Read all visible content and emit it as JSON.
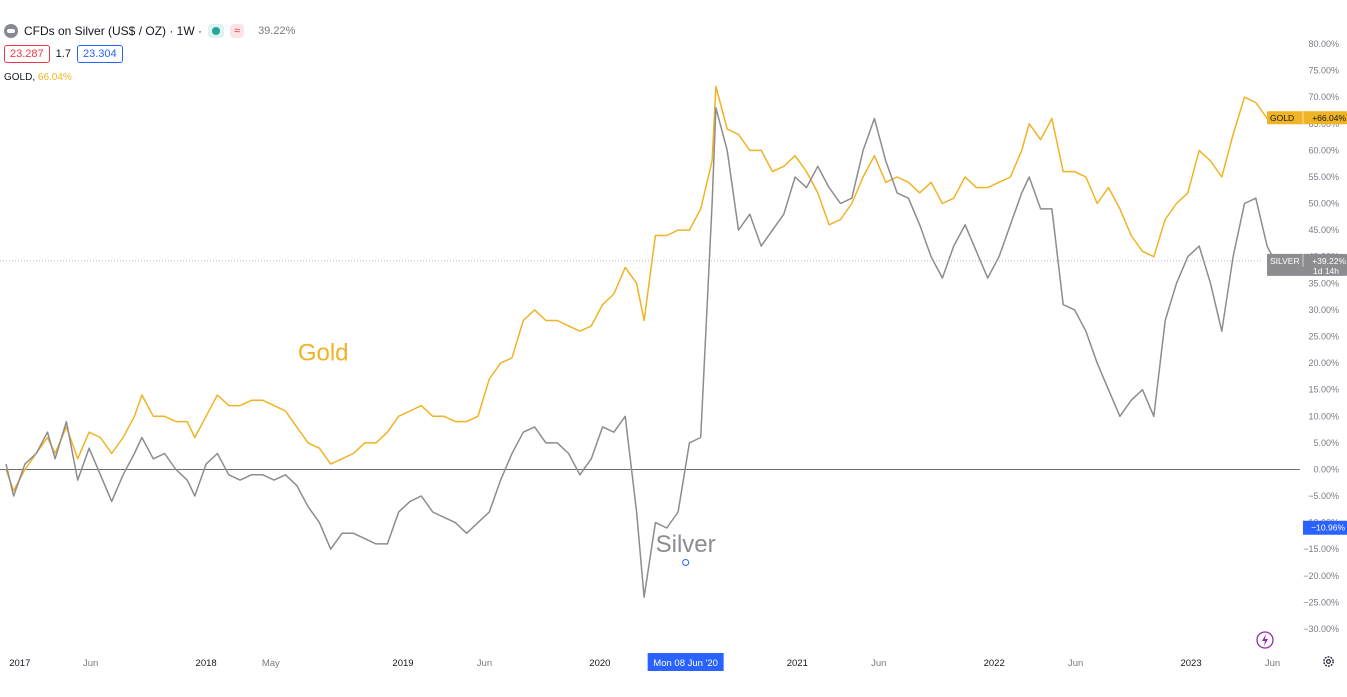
{
  "legend": {
    "title": "CFDs on Silver (US$ / OZ) · 1W ·",
    "status_icon": "green-dot-icon",
    "alert_icon": "red-approx-icon",
    "alert_glyph": "≈",
    "change": "39.22%"
  },
  "quote": {
    "bid": "23.287",
    "spread": "1.7",
    "ask": "23.304"
  },
  "compare": {
    "label": "GOLD,",
    "value": "66.04%"
  },
  "colors": {
    "gold": "#f0b323",
    "silver": "#8c8c91",
    "accent": "#2962ff",
    "axis_text": "#787b86",
    "zero_line": "#6b6e78"
  },
  "chart_data": {
    "type": "line",
    "annotations": [
      {
        "text": "Gold",
        "date": "2018-08-06",
        "y": 22,
        "color": "#f0b323"
      },
      {
        "text": "Silver",
        "date": "2020-06-08",
        "y": -14,
        "color": "#8c8c91"
      }
    ],
    "ylim": [
      -31,
      82
    ],
    "y_ticks": [
      "80.00%",
      "75.00%",
      "70.00%",
      "65.00%",
      "60.00%",
      "55.00%",
      "50.00%",
      "45.00%",
      "40.00%",
      "35.00%",
      "30.00%",
      "25.00%",
      "20.00%",
      "15.00%",
      "10.00%",
      "5.00%",
      "0.00%",
      "−5.00%",
      "−10.00%",
      "−15.00%",
      "−20.00%",
      "−25.00%",
      "−30.00%"
    ],
    "x_ticks": [
      {
        "label": "2017",
        "date": "2017-01-01",
        "bold": true
      },
      {
        "label": "Jun",
        "date": "2017-06-01",
        "bold": false
      },
      {
        "label": "2018",
        "date": "2018-01-01",
        "bold": true
      },
      {
        "label": "May",
        "date": "2018-05-01",
        "bold": false
      },
      {
        "label": "2019",
        "date": "2019-01-01",
        "bold": true
      },
      {
        "label": "Jun",
        "date": "2019-06-01",
        "bold": false
      },
      {
        "label": "2020",
        "date": "2020-01-01",
        "bold": true
      },
      {
        "label": "2021",
        "date": "2021-01-01",
        "bold": true
      },
      {
        "label": "Jun",
        "date": "2021-06-01",
        "bold": false
      },
      {
        "label": "2022",
        "date": "2022-01-01",
        "bold": true
      },
      {
        "label": "Jun",
        "date": "2022-06-01",
        "bold": false
      },
      {
        "label": "2023",
        "date": "2023-01-01",
        "bold": true
      },
      {
        "label": "Jun",
        "date": "2023-06-01",
        "bold": false
      }
    ],
    "crosshair": {
      "x_label": "Mon 08 Jun '20",
      "date": "2020-06-08",
      "y_label": "−10.96%",
      "y": -10.96
    },
    "price_labels": [
      {
        "name": "GOLD",
        "value": "+66.04%",
        "y": 66.04,
        "color": "#f0b323"
      },
      {
        "name": "SILVER",
        "value": "+39.22%",
        "extra": "1d 14h",
        "y": 39.22,
        "color": "#8c8c91"
      }
    ],
    "series": [
      {
        "color": "#f0b323",
        "points": [
          [
            "2016-12-26",
            0
          ],
          [
            "2017-01-09",
            -4
          ],
          [
            "2017-01-30",
            0
          ],
          [
            "2017-02-20",
            3
          ],
          [
            "2017-03-13",
            6
          ],
          [
            "2017-03-27",
            3
          ],
          [
            "2017-04-17",
            8
          ],
          [
            "2017-05-08",
            2
          ],
          [
            "2017-05-29",
            7
          ],
          [
            "2017-06-19",
            6
          ],
          [
            "2017-07-10",
            3
          ],
          [
            "2017-07-31",
            6
          ],
          [
            "2017-08-21",
            10
          ],
          [
            "2017-09-04",
            14
          ],
          [
            "2017-09-25",
            10
          ],
          [
            "2017-10-16",
            10
          ],
          [
            "2017-11-06",
            9
          ],
          [
            "2017-11-27",
            9
          ],
          [
            "2017-12-11",
            6
          ],
          [
            "2018-01-01",
            10
          ],
          [
            "2018-01-22",
            14
          ],
          [
            "2018-02-12",
            12
          ],
          [
            "2018-03-05",
            12
          ],
          [
            "2018-03-26",
            13
          ],
          [
            "2018-04-16",
            13
          ],
          [
            "2018-05-07",
            12
          ],
          [
            "2018-05-28",
            11
          ],
          [
            "2018-06-18",
            8
          ],
          [
            "2018-07-09",
            5
          ],
          [
            "2018-07-30",
            4
          ],
          [
            "2018-08-20",
            1
          ],
          [
            "2018-09-10",
            2
          ],
          [
            "2018-10-01",
            3
          ],
          [
            "2018-10-22",
            5
          ],
          [
            "2018-11-12",
            5
          ],
          [
            "2018-12-03",
            7
          ],
          [
            "2018-12-24",
            10
          ],
          [
            "2019-01-14",
            11
          ],
          [
            "2019-02-04",
            12
          ],
          [
            "2019-02-25",
            10
          ],
          [
            "2019-03-18",
            10
          ],
          [
            "2019-04-08",
            9
          ],
          [
            "2019-04-29",
            9
          ],
          [
            "2019-05-20",
            10
          ],
          [
            "2019-06-10",
            17
          ],
          [
            "2019-07-01",
            20
          ],
          [
            "2019-07-22",
            21
          ],
          [
            "2019-08-12",
            28
          ],
          [
            "2019-09-02",
            30
          ],
          [
            "2019-09-23",
            28
          ],
          [
            "2019-10-14",
            28
          ],
          [
            "2019-11-04",
            27
          ],
          [
            "2019-11-25",
            26
          ],
          [
            "2019-12-16",
            27
          ],
          [
            "2020-01-06",
            31
          ],
          [
            "2020-01-27",
            33
          ],
          [
            "2020-02-17",
            38
          ],
          [
            "2020-03-09",
            35
          ],
          [
            "2020-03-23",
            28
          ],
          [
            "2020-04-13",
            44
          ],
          [
            "2020-05-04",
            44
          ],
          [
            "2020-05-25",
            45
          ],
          [
            "2020-06-15",
            45
          ],
          [
            "2020-07-06",
            49
          ],
          [
            "2020-07-27",
            58
          ],
          [
            "2020-08-03",
            72
          ],
          [
            "2020-08-24",
            64
          ],
          [
            "2020-09-14",
            63
          ],
          [
            "2020-10-05",
            60
          ],
          [
            "2020-10-26",
            60
          ],
          [
            "2020-11-16",
            56
          ],
          [
            "2020-12-07",
            57
          ],
          [
            "2020-12-28",
            59
          ],
          [
            "2021-01-18",
            56
          ],
          [
            "2021-02-08",
            52
          ],
          [
            "2021-03-01",
            46
          ],
          [
            "2021-03-22",
            47
          ],
          [
            "2021-04-12",
            50
          ],
          [
            "2021-05-03",
            55
          ],
          [
            "2021-05-24",
            59
          ],
          [
            "2021-06-14",
            54
          ],
          [
            "2021-07-05",
            55
          ],
          [
            "2021-07-26",
            54
          ],
          [
            "2021-08-16",
            52
          ],
          [
            "2021-09-06",
            54
          ],
          [
            "2021-09-27",
            50
          ],
          [
            "2021-10-18",
            51
          ],
          [
            "2021-11-08",
            55
          ],
          [
            "2021-11-29",
            53
          ],
          [
            "2021-12-20",
            53
          ],
          [
            "2022-01-10",
            54
          ],
          [
            "2022-01-31",
            55
          ],
          [
            "2022-02-21",
            60
          ],
          [
            "2022-03-07",
            65
          ],
          [
            "2022-03-28",
            62
          ],
          [
            "2022-04-18",
            66
          ],
          [
            "2022-05-09",
            56
          ],
          [
            "2022-05-30",
            56
          ],
          [
            "2022-06-20",
            55
          ],
          [
            "2022-07-11",
            50
          ],
          [
            "2022-08-01",
            53
          ],
          [
            "2022-08-22",
            49
          ],
          [
            "2022-09-12",
            44
          ],
          [
            "2022-10-03",
            41
          ],
          [
            "2022-10-24",
            40
          ],
          [
            "2022-11-14",
            47
          ],
          [
            "2022-12-05",
            50
          ],
          [
            "2022-12-26",
            52
          ],
          [
            "2023-01-16",
            60
          ],
          [
            "2023-02-06",
            58
          ],
          [
            "2023-02-27",
            55
          ],
          [
            "2023-03-20",
            63
          ],
          [
            "2023-04-10",
            70
          ],
          [
            "2023-05-01",
            69
          ],
          [
            "2023-05-22",
            66
          ],
          [
            "2023-06-05",
            66
          ]
        ]
      },
      {
        "color": "#8c8c91",
        "points": [
          [
            "2016-12-26",
            1
          ],
          [
            "2017-01-09",
            -5
          ],
          [
            "2017-01-30",
            1
          ],
          [
            "2017-02-20",
            3
          ],
          [
            "2017-03-13",
            7
          ],
          [
            "2017-03-27",
            2
          ],
          [
            "2017-04-17",
            9
          ],
          [
            "2017-05-08",
            -2
          ],
          [
            "2017-05-29",
            4
          ],
          [
            "2017-06-19",
            -1
          ],
          [
            "2017-07-10",
            -6
          ],
          [
            "2017-07-31",
            -1
          ],
          [
            "2017-08-21",
            3
          ],
          [
            "2017-09-04",
            6
          ],
          [
            "2017-09-25",
            2
          ],
          [
            "2017-10-16",
            3
          ],
          [
            "2017-11-06",
            0
          ],
          [
            "2017-11-27",
            -2
          ],
          [
            "2017-12-11",
            -5
          ],
          [
            "2018-01-01",
            1
          ],
          [
            "2018-01-22",
            3
          ],
          [
            "2018-02-12",
            -1
          ],
          [
            "2018-03-05",
            -2
          ],
          [
            "2018-03-26",
            -1
          ],
          [
            "2018-04-16",
            -1
          ],
          [
            "2018-05-07",
            -2
          ],
          [
            "2018-05-28",
            -1
          ],
          [
            "2018-06-18",
            -3
          ],
          [
            "2018-07-09",
            -7
          ],
          [
            "2018-07-30",
            -10
          ],
          [
            "2018-08-20",
            -15
          ],
          [
            "2018-09-10",
            -12
          ],
          [
            "2018-10-01",
            -12
          ],
          [
            "2018-10-22",
            -13
          ],
          [
            "2018-11-12",
            -14
          ],
          [
            "2018-12-03",
            -14
          ],
          [
            "2018-12-24",
            -8
          ],
          [
            "2019-01-14",
            -6
          ],
          [
            "2019-02-04",
            -5
          ],
          [
            "2019-02-25",
            -8
          ],
          [
            "2019-03-18",
            -9
          ],
          [
            "2019-04-08",
            -10
          ],
          [
            "2019-04-29",
            -12
          ],
          [
            "2019-05-20",
            -10
          ],
          [
            "2019-06-10",
            -8
          ],
          [
            "2019-07-01",
            -2
          ],
          [
            "2019-07-22",
            3
          ],
          [
            "2019-08-12",
            7
          ],
          [
            "2019-09-02",
            8
          ],
          [
            "2019-09-23",
            5
          ],
          [
            "2019-10-14",
            5
          ],
          [
            "2019-11-04",
            3
          ],
          [
            "2019-11-25",
            -1
          ],
          [
            "2019-12-16",
            2
          ],
          [
            "2020-01-06",
            8
          ],
          [
            "2020-01-27",
            7
          ],
          [
            "2020-02-17",
            10
          ],
          [
            "2020-03-09",
            -8
          ],
          [
            "2020-03-23",
            -24
          ],
          [
            "2020-04-13",
            -10
          ],
          [
            "2020-05-04",
            -11
          ],
          [
            "2020-05-25",
            -8
          ],
          [
            "2020-06-15",
            5
          ],
          [
            "2020-07-06",
            6
          ],
          [
            "2020-07-27",
            50
          ],
          [
            "2020-08-03",
            68
          ],
          [
            "2020-08-24",
            60
          ],
          [
            "2020-09-14",
            45
          ],
          [
            "2020-10-05",
            48
          ],
          [
            "2020-10-26",
            42
          ],
          [
            "2020-11-16",
            45
          ],
          [
            "2020-12-07",
            48
          ],
          [
            "2020-12-28",
            55
          ],
          [
            "2021-01-18",
            53
          ],
          [
            "2021-02-08",
            57
          ],
          [
            "2021-03-01",
            53
          ],
          [
            "2021-03-22",
            50
          ],
          [
            "2021-04-12",
            51
          ],
          [
            "2021-05-03",
            60
          ],
          [
            "2021-05-24",
            66
          ],
          [
            "2021-06-14",
            58
          ],
          [
            "2021-07-05",
            52
          ],
          [
            "2021-07-26",
            51
          ],
          [
            "2021-08-16",
            46
          ],
          [
            "2021-09-06",
            40
          ],
          [
            "2021-09-27",
            36
          ],
          [
            "2021-10-18",
            42
          ],
          [
            "2021-11-08",
            46
          ],
          [
            "2021-11-29",
            41
          ],
          [
            "2021-12-20",
            36
          ],
          [
            "2022-01-10",
            40
          ],
          [
            "2022-01-31",
            46
          ],
          [
            "2022-02-21",
            52
          ],
          [
            "2022-03-07",
            55
          ],
          [
            "2022-03-28",
            49
          ],
          [
            "2022-04-18",
            49
          ],
          [
            "2022-05-09",
            31
          ],
          [
            "2022-05-30",
            30
          ],
          [
            "2022-06-20",
            26
          ],
          [
            "2022-07-11",
            20
          ],
          [
            "2022-08-01",
            15
          ],
          [
            "2022-08-22",
            10
          ],
          [
            "2022-09-12",
            13
          ],
          [
            "2022-10-03",
            15
          ],
          [
            "2022-10-24",
            10
          ],
          [
            "2022-11-14",
            28
          ],
          [
            "2022-12-05",
            35
          ],
          [
            "2022-12-26",
            40
          ],
          [
            "2023-01-16",
            42
          ],
          [
            "2023-02-06",
            35
          ],
          [
            "2023-02-27",
            26
          ],
          [
            "2023-03-20",
            40
          ],
          [
            "2023-04-10",
            50
          ],
          [
            "2023-05-01",
            51
          ],
          [
            "2023-05-22",
            42
          ],
          [
            "2023-06-05",
            39.22
          ]
        ]
      }
    ]
  }
}
